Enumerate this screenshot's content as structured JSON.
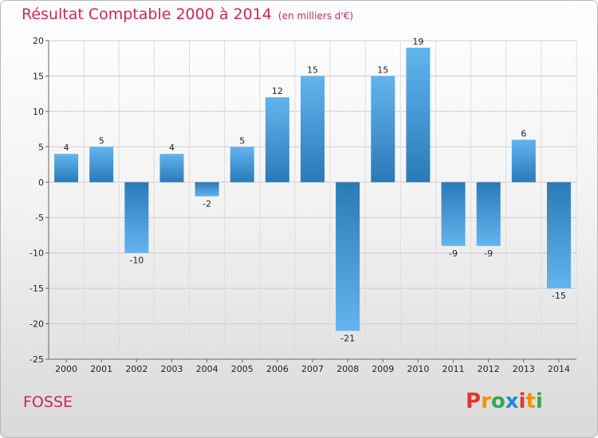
{
  "header": {
    "title": "Résultat Comptable 2000 à 2014",
    "unit": "(en milliers d'€)"
  },
  "footer": {
    "commune": "FOSSE",
    "logo": "Proxiti",
    "logo_colors": [
      "#e8332a",
      "#f39200",
      "#2fa84f",
      "#1e88d8",
      "#e8332a",
      "#f39200",
      "#2fa84f"
    ]
  },
  "colors": {
    "bar_dark": "#2a7ab8",
    "bar_light": "#62b4ee",
    "grid": "#cccccc",
    "title": "#c8285a"
  },
  "chart_data": {
    "type": "bar",
    "title": "Résultat Comptable 2000 à 2014",
    "subtitle": "(en milliers d'€)",
    "xlabel": "",
    "ylabel": "",
    "categories": [
      "2000",
      "2001",
      "2002",
      "2003",
      "2004",
      "2005",
      "2006",
      "2007",
      "2008",
      "2009",
      "2010",
      "2011",
      "2012",
      "2013",
      "2014"
    ],
    "values": [
      4,
      5,
      -10,
      4,
      -2,
      5,
      12,
      15,
      -21,
      15,
      19,
      -9,
      -9,
      6,
      -15
    ],
    "ylim": [
      -25,
      20
    ],
    "yticks": [
      20,
      15,
      10,
      5,
      0,
      -5,
      -10,
      -15,
      -20,
      -25
    ],
    "grid": true
  }
}
